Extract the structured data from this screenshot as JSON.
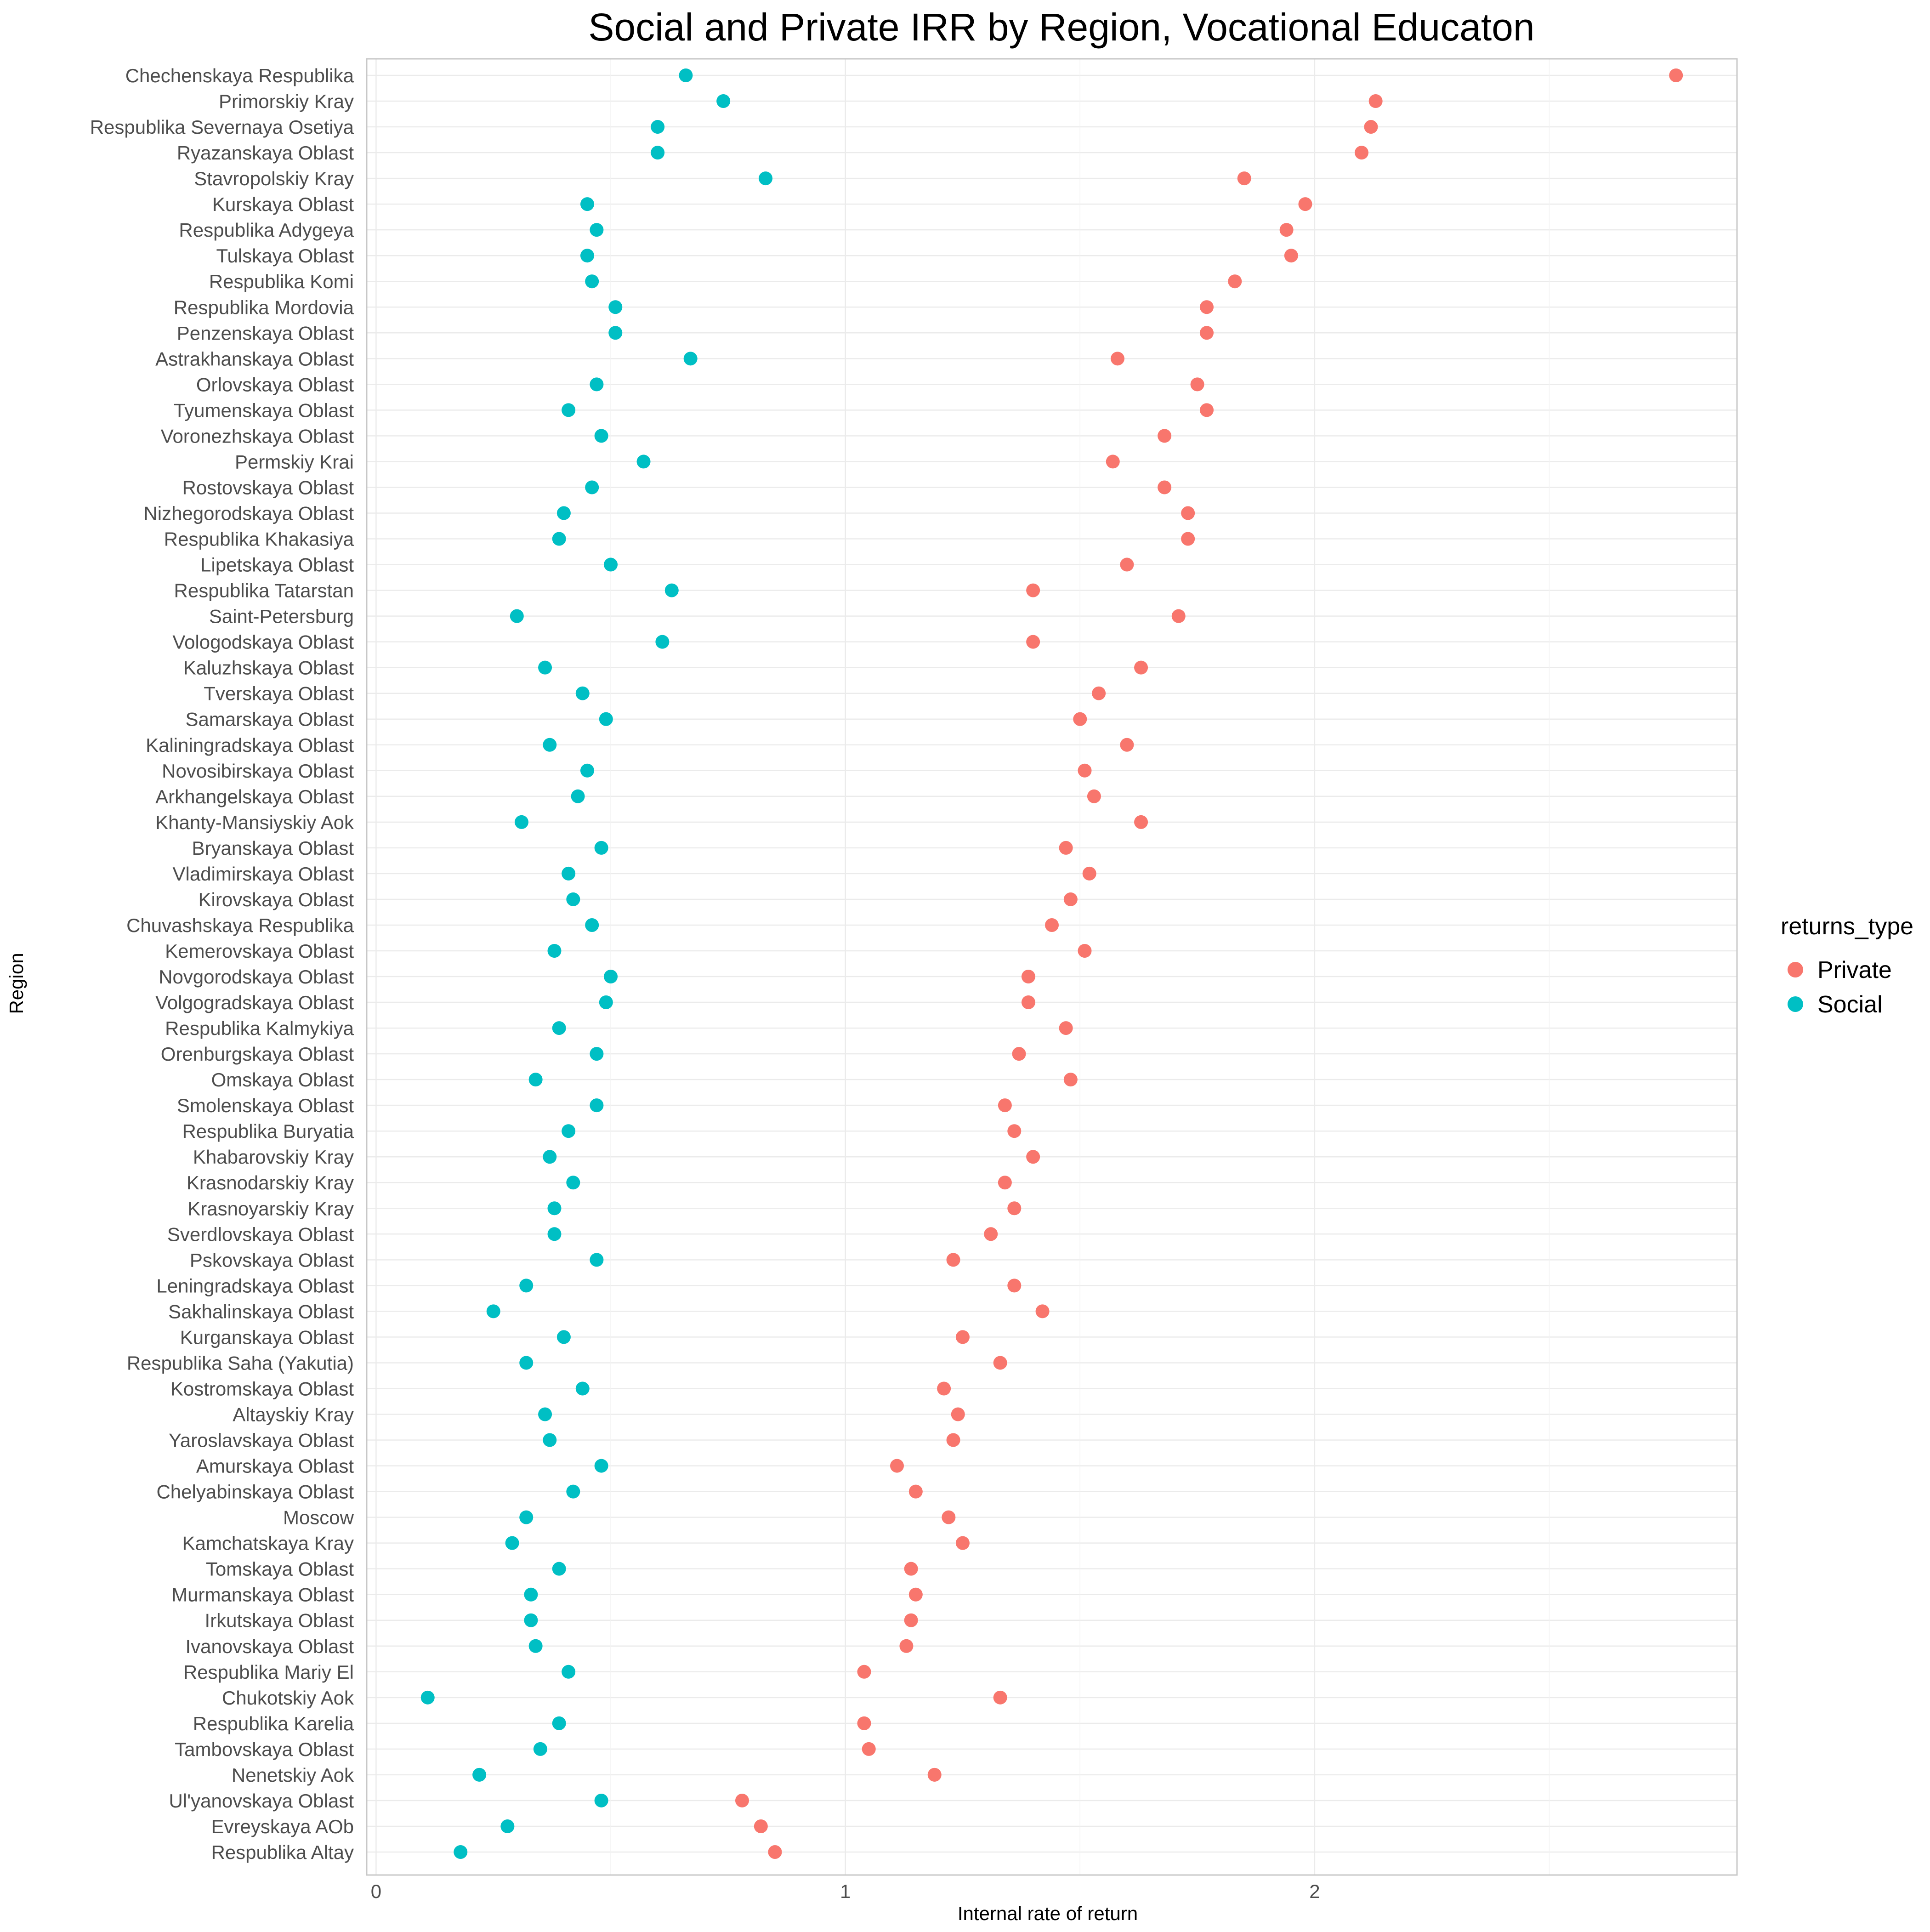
{
  "chart_data": {
    "type": "scatter",
    "title": "Social and Private IRR by Region, Vocational Educaton",
    "xlabel": "Internal rate of return",
    "ylabel": "Region",
    "xlim": [
      -0.02,
      2.9
    ],
    "xticks": [
      0,
      1,
      2
    ],
    "grid": true,
    "legend": {
      "title": "returns_type",
      "placement": "right"
    },
    "categories": [
      "Chechenskaya Respublika",
      "Primorskiy Kray",
      "Respublika Severnaya Osetiya",
      "Ryazanskaya Oblast",
      "Stavropolskiy Kray",
      "Kurskaya Oblast",
      "Respublika Adygeya",
      "Tulskaya Oblast",
      "Respublika Komi",
      "Respublika Mordovia",
      "Penzenskaya Oblast",
      "Astrakhanskaya Oblast",
      "Orlovskaya Oblast",
      "Tyumenskaya Oblast",
      "Voronezhskaya Oblast",
      "Permskiy Krai",
      "Rostovskaya Oblast",
      "Nizhegorodskaya Oblast",
      "Respublika Khakasiya",
      "Lipetskaya Oblast",
      "Respublika Tatarstan",
      "Saint-Petersburg",
      "Vologodskaya Oblast",
      "Kaluzhskaya Oblast",
      "Tverskaya Oblast",
      "Samarskaya Oblast",
      "Kaliningradskaya Oblast",
      "Novosibirskaya Oblast",
      "Arkhangelskaya Oblast",
      "Khanty-Mansiyskiy Aok",
      "Bryanskaya Oblast",
      "Vladimirskaya Oblast",
      "Kirovskaya Oblast",
      "Chuvashskaya Respublika",
      "Kemerovskaya Oblast",
      "Novgorodskaya Oblast",
      "Volgogradskaya Oblast",
      "Respublika Kalmykiya",
      "Orenburgskaya Oblast",
      "Omskaya Oblast",
      "Smolenskaya Oblast",
      "Respublika Buryatia",
      "Khabarovskiy Kray",
      "Krasnodarskiy Kray",
      "Krasnoyarskiy Kray",
      "Sverdlovskaya Oblast",
      "Pskovskaya Oblast",
      "Leningradskaya Oblast",
      "Sakhalinskaya Oblast",
      "Kurganskaya Oblast",
      "Respublika Saha (Yakutia)",
      "Kostromskaya Oblast",
      "Altayskiy Kray",
      "Yaroslavskaya Oblast",
      "Amurskaya Oblast",
      "Chelyabinskaya Oblast",
      "Moscow",
      "Kamchatskaya Kray",
      "Tomskaya Oblast",
      "Murmanskaya Oblast",
      "Irkutskaya Oblast",
      "Ivanovskaya Oblast",
      "Respublika Mariy El",
      "Chukotskiy Aok",
      "Respublika Karelia",
      "Tambovskaya Oblast",
      "Nenetskiy Aok",
      "Ul'yanovskaya Oblast",
      "Evreyskaya AOb",
      "Respublika Altay"
    ],
    "series": [
      {
        "name": "Private",
        "color": "#F8766D",
        "values": [
          2.77,
          2.13,
          2.12,
          2.1,
          1.85,
          1.98,
          1.94,
          1.95,
          1.83,
          1.77,
          1.77,
          1.58,
          1.75,
          1.77,
          1.68,
          1.57,
          1.68,
          1.73,
          1.73,
          1.6,
          1.4,
          1.71,
          1.4,
          1.63,
          1.54,
          1.5,
          1.6,
          1.51,
          1.53,
          1.63,
          1.47,
          1.52,
          1.48,
          1.44,
          1.51,
          1.39,
          1.39,
          1.47,
          1.37,
          1.48,
          1.34,
          1.36,
          1.4,
          1.34,
          1.36,
          1.31,
          1.23,
          1.36,
          1.42,
          1.25,
          1.33,
          1.21,
          1.24,
          1.23,
          1.11,
          1.15,
          1.22,
          1.25,
          1.14,
          1.15,
          1.14,
          1.13,
          1.04,
          1.33,
          1.04,
          1.05,
          1.19,
          0.78,
          0.82,
          0.85
        ]
      },
      {
        "name": "Social",
        "color": "#00BFC4",
        "values": [
          0.66,
          0.74,
          0.6,
          0.6,
          0.83,
          0.45,
          0.47,
          0.45,
          0.46,
          0.51,
          0.51,
          0.67,
          0.47,
          0.41,
          0.48,
          0.57,
          0.46,
          0.4,
          0.39,
          0.5,
          0.63,
          0.3,
          0.61,
          0.36,
          0.44,
          0.49,
          0.37,
          0.45,
          0.43,
          0.31,
          0.48,
          0.41,
          0.42,
          0.46,
          0.38,
          0.5,
          0.49,
          0.39,
          0.47,
          0.34,
          0.47,
          0.41,
          0.37,
          0.42,
          0.38,
          0.38,
          0.47,
          0.32,
          0.25,
          0.4,
          0.32,
          0.44,
          0.36,
          0.37,
          0.48,
          0.42,
          0.32,
          0.29,
          0.39,
          0.33,
          0.33,
          0.34,
          0.41,
          0.11,
          0.39,
          0.35,
          0.22,
          0.48,
          0.28,
          0.18
        ]
      }
    ]
  }
}
